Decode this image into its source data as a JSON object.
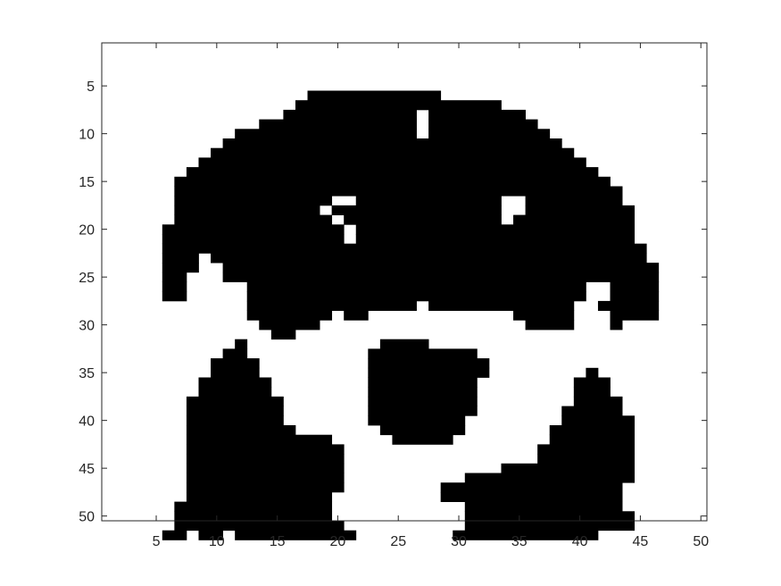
{
  "chart_data": {
    "type": "heatmap",
    "colormap": {
      "0": "#ffffff",
      "1": "#000000"
    },
    "axis_color": "#262626",
    "xlim": [
      0.5,
      50.5
    ],
    "ylim": [
      0.5,
      50.5
    ],
    "y_reversed": true,
    "x_ticks": [
      5,
      10,
      15,
      20,
      25,
      30,
      35,
      40,
      45,
      50
    ],
    "y_ticks": [
      5,
      10,
      15,
      20,
      25,
      30,
      35,
      40,
      45,
      50
    ],
    "x_tick_labels": [
      "5",
      "10",
      "15",
      "20",
      "25",
      "30",
      "35",
      "40",
      "45",
      "50"
    ],
    "y_tick_labels": [
      "5",
      "10",
      "15",
      "20",
      "25",
      "30",
      "35",
      "40",
      "45",
      "50"
    ],
    "grid": false,
    "row_runs": [
      [],
      [],
      [],
      [],
      [],
      [
        [
          18,
          28
        ]
      ],
      [
        [
          17,
          33
        ]
      ],
      [
        [
          16,
          26
        ],
        [
          28,
          35
        ]
      ],
      [
        [
          14,
          26
        ],
        [
          28,
          36
        ]
      ],
      [
        [
          12,
          26
        ],
        [
          28,
          37
        ]
      ],
      [
        [
          11,
          38
        ]
      ],
      [
        [
          10,
          39
        ]
      ],
      [
        [
          9,
          40
        ]
      ],
      [
        [
          8,
          41
        ]
      ],
      [
        [
          7,
          42
        ]
      ],
      [
        [
          7,
          43
        ]
      ],
      [
        [
          7,
          19
        ],
        [
          22,
          33
        ],
        [
          36,
          43
        ]
      ],
      [
        [
          7,
          18
        ],
        [
          20,
          33
        ],
        [
          36,
          44
        ]
      ],
      [
        [
          7,
          19
        ],
        [
          21,
          33
        ],
        [
          35,
          44
        ]
      ],
      [
        [
          6,
          20
        ],
        [
          22,
          44
        ]
      ],
      [
        [
          6,
          20
        ],
        [
          22,
          44
        ]
      ],
      [
        [
          6,
          45
        ]
      ],
      [
        [
          6,
          8
        ],
        [
          10,
          45
        ]
      ],
      [
        [
          6,
          8
        ],
        [
          11,
          46
        ]
      ],
      [
        [
          6,
          7
        ],
        [
          11,
          46
        ]
      ],
      [
        [
          6,
          7
        ],
        [
          13,
          40
        ],
        [
          43,
          46
        ]
      ],
      [
        [
          6,
          7
        ],
        [
          13,
          40
        ],
        [
          43,
          46
        ]
      ],
      [
        [
          13,
          26
        ],
        [
          28,
          39
        ],
        [
          42,
          46
        ]
      ],
      [
        [
          13,
          19
        ],
        [
          21,
          22
        ],
        [
          35,
          39
        ],
        [
          43,
          46
        ]
      ],
      [
        [
          14,
          18
        ],
        [
          36,
          39
        ],
        [
          43,
          43
        ]
      ],
      [
        [
          15,
          16
        ]
      ],
      [
        [
          12,
          12
        ],
        [
          24,
          27
        ]
      ],
      [
        [
          11,
          12
        ],
        [
          23,
          31
        ]
      ],
      [
        [
          10,
          13
        ],
        [
          23,
          32
        ]
      ],
      [
        [
          10,
          13
        ],
        [
          23,
          32
        ],
        [
          41,
          41
        ]
      ],
      [
        [
          9,
          14
        ],
        [
          23,
          31
        ],
        [
          40,
          42
        ]
      ],
      [
        [
          9,
          14
        ],
        [
          23,
          31
        ],
        [
          40,
          42
        ]
      ],
      [
        [
          8,
          15
        ],
        [
          23,
          31
        ],
        [
          40,
          43
        ]
      ],
      [
        [
          8,
          15
        ],
        [
          23,
          31
        ],
        [
          39,
          43
        ]
      ],
      [
        [
          8,
          15
        ],
        [
          23,
          30
        ],
        [
          39,
          44
        ]
      ],
      [
        [
          8,
          16
        ],
        [
          24,
          30
        ],
        [
          38,
          44
        ]
      ],
      [
        [
          8,
          19
        ],
        [
          25,
          29
        ],
        [
          38,
          44
        ]
      ],
      [
        [
          8,
          20
        ],
        [
          37,
          44
        ]
      ],
      [
        [
          8,
          20
        ],
        [
          37,
          44
        ]
      ],
      [
        [
          8,
          20
        ],
        [
          34,
          44
        ]
      ],
      [
        [
          8,
          20
        ],
        [
          31,
          44
        ]
      ],
      [
        [
          8,
          20
        ],
        [
          29,
          43
        ]
      ],
      [
        [
          8,
          19
        ],
        [
          29,
          43
        ]
      ],
      [
        [
          7,
          19
        ],
        [
          31,
          43
        ]
      ],
      [
        [
          7,
          19
        ],
        [
          31,
          44
        ]
      ],
      [
        [
          7,
          20
        ],
        [
          31,
          44
        ]
      ],
      [
        [
          6,
          7
        ],
        [
          9,
          10
        ],
        [
          12,
          21
        ],
        [
          30,
          41
        ]
      ]
    ]
  }
}
